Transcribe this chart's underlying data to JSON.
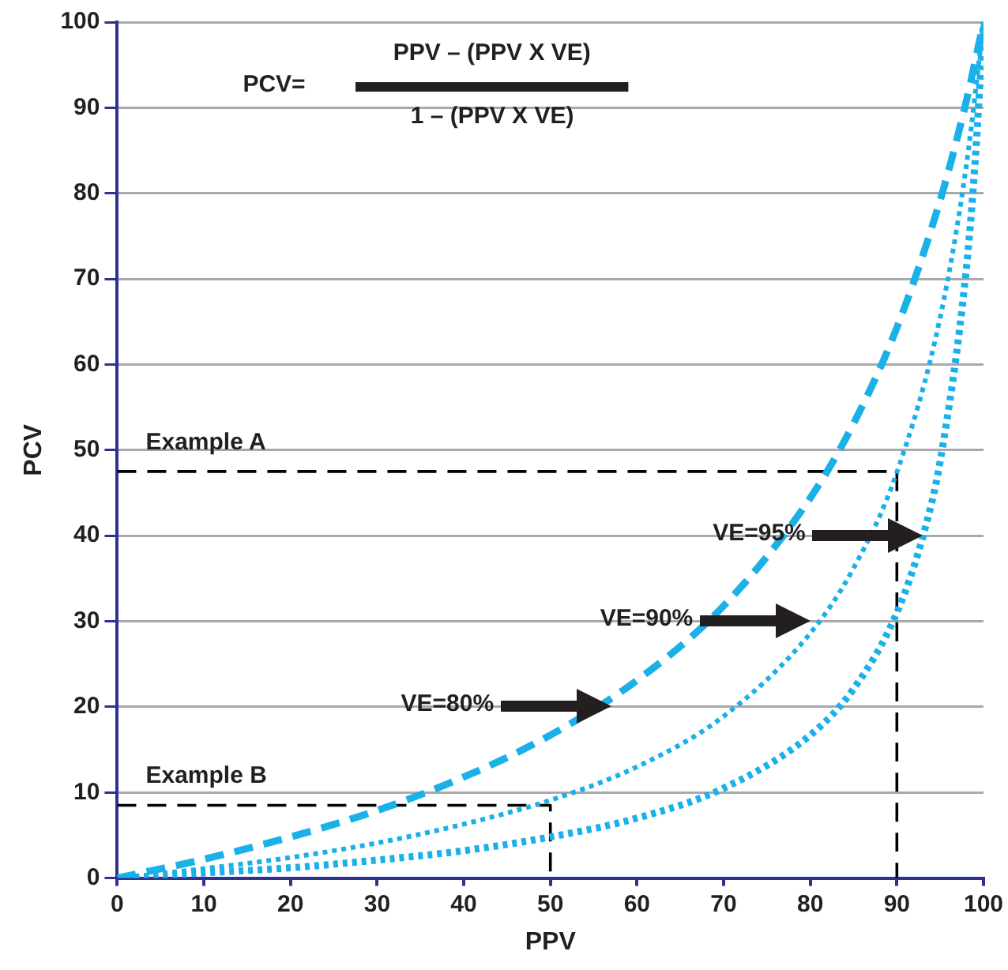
{
  "chart_data": {
    "type": "line",
    "xlabel": "PPV",
    "ylabel": "PCV",
    "xlim": [
      0,
      100
    ],
    "ylim": [
      0,
      100
    ],
    "xticks": [
      0,
      10,
      20,
      30,
      40,
      50,
      60,
      70,
      80,
      90,
      100
    ],
    "yticks": [
      0,
      10,
      20,
      30,
      40,
      50,
      60,
      70,
      80,
      90,
      100
    ],
    "grid": "y",
    "legend": false,
    "marker": "none",
    "x": [
      0,
      10,
      20,
      30,
      40,
      50,
      60,
      70,
      80,
      85,
      90,
      95,
      98,
      100
    ],
    "series": [
      {
        "color": "#1ab0e8",
        "line_style": "dashed",
        "values": [
          0,
          2.2,
          4.8,
          7.9,
          11.8,
          16.7,
          23.1,
          31.8,
          44.4,
          53.1,
          64.3,
          79.2,
          90.7,
          100
        ]
      },
      {
        "color": "#1ab0e8",
        "line_style": "dotted",
        "x": [
          2,
          10,
          20,
          30,
          40,
          50,
          60,
          70,
          80,
          85,
          90,
          95,
          98,
          100
        ],
        "values": [
          0.2,
          1.1,
          2.4,
          4.1,
          6.3,
          9.1,
          13,
          18.9,
          28.6,
          36.2,
          47.4,
          65.5,
          83.1,
          100
        ]
      },
      {
        "color": "#1ab0e8",
        "line_style": "dotted",
        "x": [
          2,
          10,
          20,
          30,
          40,
          50,
          60,
          70,
          80,
          85,
          90,
          93,
          95,
          98,
          99,
          100
        ],
        "values": [
          0.1,
          0.6,
          1.2,
          2.1,
          3.2,
          4.8,
          7,
          10.5,
          16.7,
          22.1,
          31,
          39.9,
          48.7,
          71,
          83.2,
          100
        ]
      },
      {
        "name": "Example A",
        "color": "#000000",
        "line_style": "dashed",
        "x": [
          0,
          90,
          90
        ],
        "values": [
          47.5,
          47.5,
          0
        ]
      },
      {
        "name": "Example B",
        "color": "#000000",
        "line_style": "dashed",
        "x": [
          0,
          50,
          50
        ],
        "values": [
          8.5,
          8.5,
          0
        ]
      }
    ],
    "annotations": [
      "PCV=",
      "PPV – (PPV X VE)",
      "1 – (PPV X VE)",
      "VE=80%",
      "VE=90%",
      "VE=95%"
    ]
  }
}
